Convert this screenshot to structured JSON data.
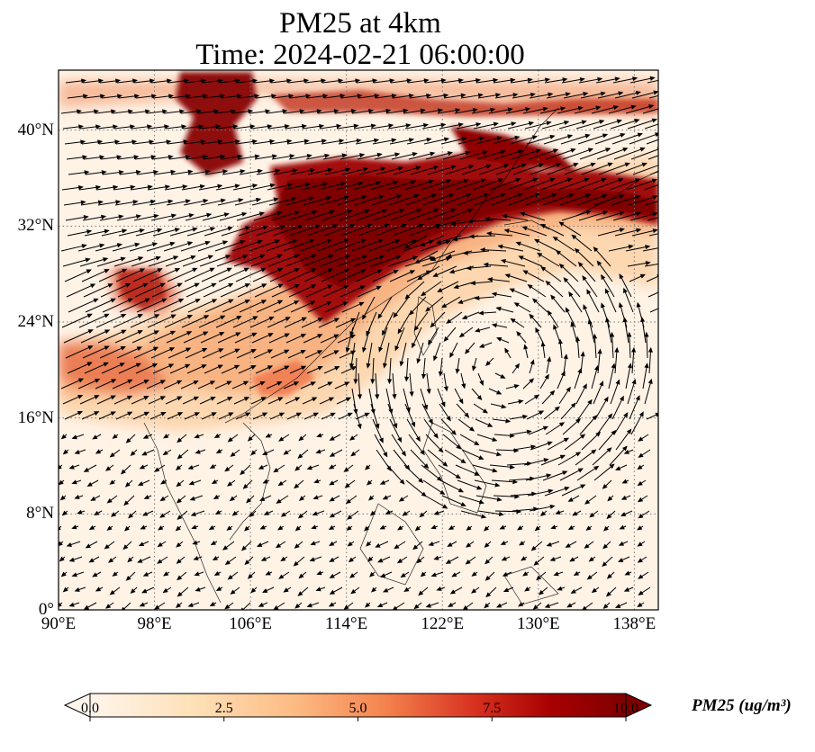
{
  "title": {
    "line1": "PM25 at 4km",
    "line2": "Time: 2024-02-21 06:00:00"
  },
  "map": {
    "lon_range": [
      90,
      140
    ],
    "lat_range": [
      0,
      45
    ],
    "lon_ticks": [
      "90°E",
      "98°E",
      "106°E",
      "114°E",
      "122°E",
      "130°E",
      "138°E"
    ],
    "lon_tick_values": [
      90,
      98,
      106,
      114,
      122,
      130,
      138
    ],
    "lat_ticks": [
      "0°",
      "8°N",
      "16°N",
      "24°N",
      "32°N",
      "40°N"
    ],
    "lat_tick_values": [
      0,
      8,
      16,
      24,
      32,
      40
    ],
    "gridlines": "dotted",
    "vectors": "wind"
  },
  "colorbar": {
    "label": "PM25 (ug/m³)",
    "ticks": [
      "0.0",
      "2.5",
      "5.0",
      "7.5",
      "10.0"
    ],
    "tick_values": [
      0,
      2.5,
      5,
      7.5,
      10
    ],
    "range": [
      0,
      10
    ],
    "extend": "both",
    "colormap": [
      "#fff5eb",
      "#fdd49e",
      "#fdbb84",
      "#fc8d59",
      "#ef6548",
      "#d7301f",
      "#b30000",
      "#7f0000"
    ]
  }
}
